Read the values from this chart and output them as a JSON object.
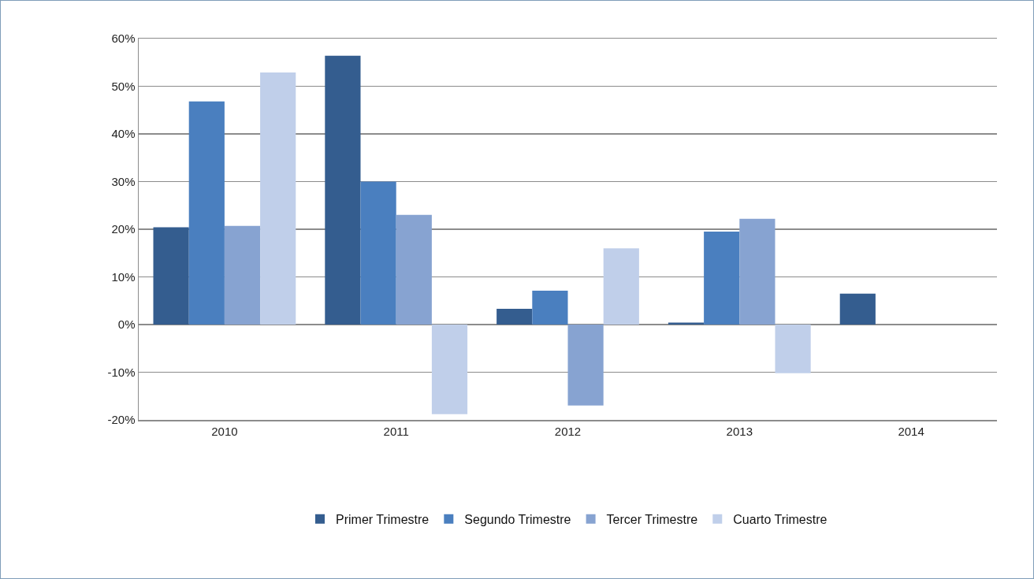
{
  "chart_data": {
    "type": "bar",
    "categories": [
      "2010",
      "2011",
      "2012",
      "2013",
      "2014"
    ],
    "series": [
      {
        "name": "Primer Trimestre",
        "color": "#345d8f",
        "values": [
          20.4,
          56.4,
          3.3,
          0.4,
          6.5
        ]
      },
      {
        "name": "Segundo Trimestre",
        "color": "#4a7fbf",
        "values": [
          46.8,
          30.0,
          7.1,
          19.5,
          null
        ]
      },
      {
        "name": "Tercer Trimestre",
        "color": "#87a3d1",
        "values": [
          20.7,
          23.0,
          -17.0,
          22.2,
          null
        ]
      },
      {
        "name": "Cuarto Trimestre",
        "color": "#c0cfea",
        "values": [
          52.9,
          -18.8,
          16.0,
          -10.2,
          null
        ]
      }
    ],
    "ylim": [
      -20,
      60
    ],
    "yticks": [
      {
        "value": -20,
        "label": "-20%"
      },
      {
        "value": -10,
        "label": "-10%"
      },
      {
        "value": 0,
        "label": "0%"
      },
      {
        "value": 10,
        "label": "10%"
      },
      {
        "value": 20,
        "label": "20%"
      },
      {
        "value": 30,
        "label": "30%"
      },
      {
        "value": 40,
        "label": "40%"
      },
      {
        "value": 50,
        "label": "50%"
      },
      {
        "value": 60,
        "label": "60%"
      }
    ],
    "grid": "y",
    "legend": "bottom"
  }
}
